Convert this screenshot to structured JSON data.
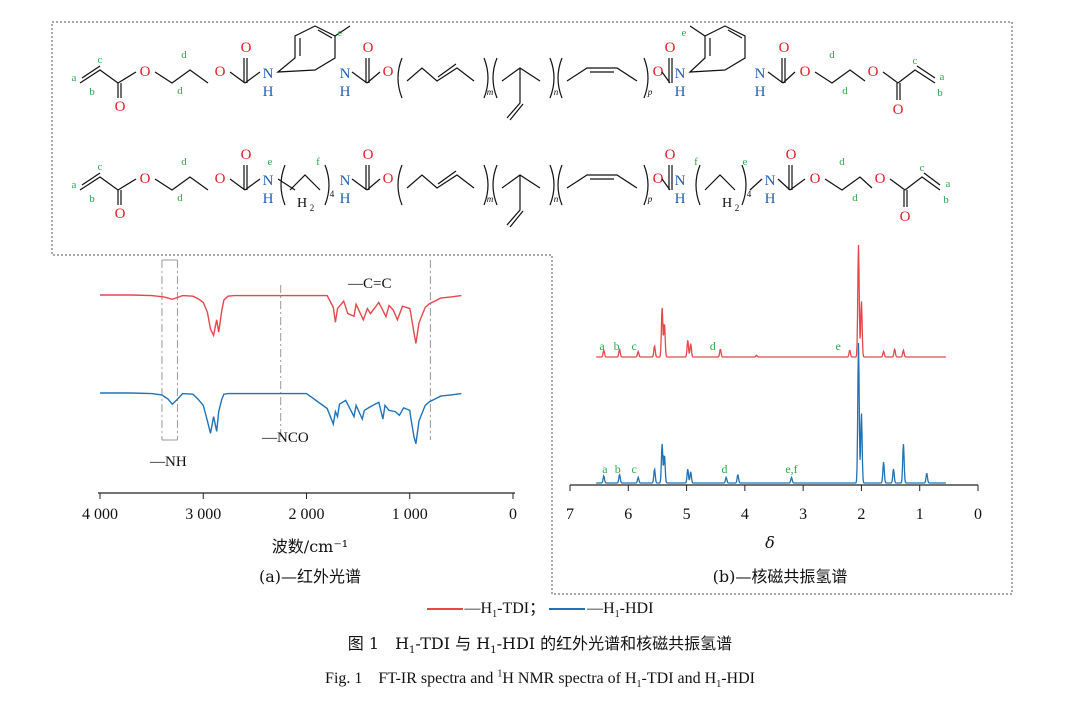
{
  "colors": {
    "tdi": "#e8474a",
    "hdi": "#1f73b8",
    "green": "#2fa84f",
    "blue_text": "#1f5fb4",
    "red_text": "#e31c23"
  },
  "structures": {
    "top": {
      "left_label_a": "a",
      "left_label_b": "b",
      "left_label_c": "c",
      "d": "d",
      "e": "e",
      "NH": "N",
      "H": "H",
      "sub_m": "m",
      "sub_n": "n",
      "sub_p": "p"
    },
    "bottom": {
      "left_label_a": "a",
      "left_label_b": "b",
      "left_label_c": "c",
      "d": "d",
      "e": "e",
      "f": "f",
      "NH": "N",
      "H": "H",
      "H2": "H",
      "sub2": "2",
      "sub4": "4",
      "sub_m": "m",
      "sub_n": "n",
      "sub_p": "p"
    },
    "atom_O": "O"
  },
  "chart_data": [
    {
      "type": "line",
      "title": "(a)—红外光谱",
      "xlabel": "波数/cm⁻¹",
      "ylabel": "",
      "xlim": [
        4000,
        0
      ],
      "x_ticks": [
        "4 000",
        "3 000",
        "2 000",
        "1 000",
        "0"
      ],
      "x_tick_values": [
        4000,
        3000,
        2000,
        1000,
        0
      ],
      "annotations": {
        "nh": "—NH",
        "nco": "—NCO",
        "cc": "—C=C"
      },
      "marker_lines": [
        3400,
        3250,
        2250,
        800
      ],
      "series": [
        {
          "name": "H1-TDI",
          "x": [
            4000,
            3700,
            3500,
            3380,
            3300,
            3250,
            3200,
            3100,
            3050,
            3000,
            2960,
            2930,
            2900,
            2870,
            2850,
            2820,
            2800,
            2760,
            2700,
            2400,
            2000,
            1800,
            1740,
            1720,
            1700,
            1640,
            1600,
            1540,
            1520,
            1450,
            1410,
            1380,
            1300,
            1230,
            1200,
            1160,
            1120,
            1070,
            1000,
            990,
            960,
            940,
            910,
            850,
            810,
            760,
            700,
            600,
            500
          ],
          "y": [
            100,
            100,
            99,
            97,
            93,
            96,
            99,
            98,
            94,
            88,
            72,
            45,
            35,
            60,
            40,
            75,
            92,
            98,
            99,
            99,
            99,
            99,
            80,
            56,
            78,
            90,
            70,
            66,
            85,
            60,
            78,
            70,
            88,
            65,
            83,
            76,
            60,
            82,
            78,
            70,
            40,
            22,
            55,
            80,
            86,
            90,
            95,
            97,
            99
          ]
        },
        {
          "name": "H1-HDI",
          "x": [
            4000,
            3700,
            3500,
            3400,
            3340,
            3300,
            3250,
            3200,
            3100,
            3050,
            3000,
            2960,
            2930,
            2900,
            2870,
            2850,
            2820,
            2800,
            2760,
            2700,
            2400,
            2000,
            1800,
            1740,
            1720,
            1700,
            1680,
            1620,
            1540,
            1520,
            1460,
            1440,
            1380,
            1300,
            1260,
            1240,
            1200,
            1140,
            1100,
            1060,
            1000,
            990,
            960,
            940,
            910,
            850,
            810,
            760,
            700,
            600,
            500
          ],
          "y": [
            100,
            100,
            99,
            97,
            90,
            82,
            90,
            99,
            98,
            90,
            80,
            55,
            35,
            62,
            38,
            70,
            90,
            98,
            99,
            99,
            99,
            99,
            75,
            50,
            70,
            62,
            82,
            88,
            62,
            80,
            58,
            72,
            78,
            85,
            58,
            80,
            72,
            70,
            64,
            76,
            72,
            60,
            30,
            18,
            55,
            80,
            86,
            90,
            95,
            97,
            99
          ]
        }
      ]
    },
    {
      "type": "line",
      "title": "(b)—核磁共振氢谱",
      "xlabel": "δ",
      "ylabel": "",
      "xlim": [
        7,
        0
      ],
      "x_ticks": [
        "7",
        "6",
        "5",
        "4",
        "3",
        "2",
        "1",
        "0"
      ],
      "x_tick_values": [
        7,
        6,
        5,
        4,
        3,
        2,
        1,
        0
      ],
      "series": [
        {
          "name": "H1-TDI",
          "peaks": [
            [
              6.42,
              0.06
            ],
            [
              6.15,
              0.07
            ],
            [
              5.83,
              0.05
            ],
            [
              5.55,
              0.1
            ],
            [
              5.42,
              0.44
            ],
            [
              5.38,
              0.3
            ],
            [
              4.98,
              0.15
            ],
            [
              4.93,
              0.12
            ],
            [
              4.42,
              0.07
            ],
            [
              3.8,
              0.015
            ],
            [
              2.2,
              0.06
            ],
            [
              2.05,
              1.0
            ],
            [
              2.0,
              0.5
            ],
            [
              1.62,
              0.05
            ],
            [
              1.43,
              0.07
            ],
            [
              1.28,
              0.06
            ]
          ]
        },
        {
          "name": "H1-HDI",
          "peaks": [
            [
              6.42,
              0.05
            ],
            [
              6.15,
              0.06
            ],
            [
              5.83,
              0.04
            ],
            [
              5.55,
              0.1
            ],
            [
              5.42,
              0.28
            ],
            [
              5.38,
              0.2
            ],
            [
              4.98,
              0.1
            ],
            [
              4.93,
              0.08
            ],
            [
              4.32,
              0.04
            ],
            [
              4.12,
              0.06
            ],
            [
              3.2,
              0.04
            ],
            [
              2.05,
              1.0
            ],
            [
              2.0,
              0.5
            ],
            [
              1.62,
              0.15
            ],
            [
              1.45,
              0.1
            ],
            [
              1.28,
              0.28
            ],
            [
              0.88,
              0.07
            ]
          ]
        }
      ],
      "labels_tdi": {
        "a": "a",
        "b": "b",
        "c": "c",
        "d": "d",
        "e": "e"
      },
      "labels_hdi": {
        "a": "a",
        "b": "b",
        "c": "c",
        "d": "d",
        "ef": "e,f"
      }
    }
  ],
  "legend": {
    "tdi_label": "—H",
    "tdi_sub": "1",
    "tdi_suffix": "-TDI；",
    "hdi_label": "—H",
    "hdi_sub": "1",
    "hdi_suffix": "-HDI"
  },
  "captions": {
    "cn_prefix": "图 1　H",
    "cn_sub1": "1",
    "cn_mid": "-TDI 与 H",
    "cn_sub2": "1",
    "cn_suffix": "-HDI 的红外光谱和核磁共振氢谱",
    "en_prefix": "Fig. 1　FT-IR spectra and ",
    "en_sup": "1",
    "en_mid": "H NMR spectra of H",
    "en_sub1": "1",
    "en_mid2": "-TDI and H",
    "en_sub2": "1",
    "en_suffix": "-HDI"
  }
}
